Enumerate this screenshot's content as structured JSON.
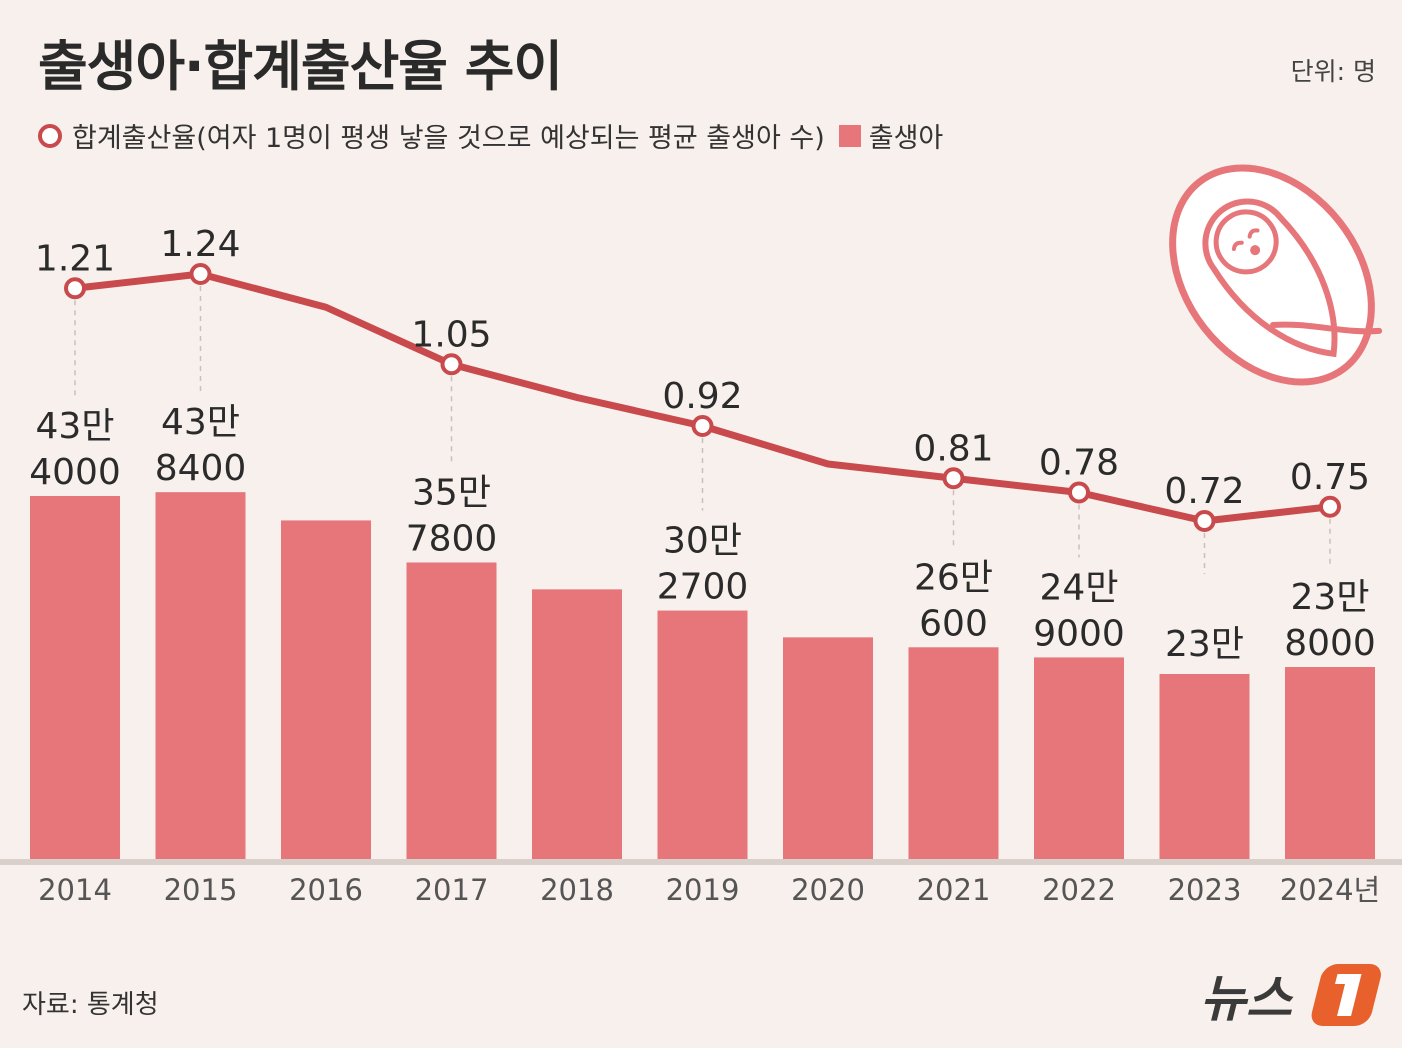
{
  "header": {
    "title": "출생아·합계출산율 추이",
    "unit": "단위: 명"
  },
  "legend": {
    "rate_label": "합계출산율(여자 1명이 평생 낳을 것으로 예상되는 평균 출생아 수)",
    "births_label": "출생아"
  },
  "source": "자료: 통계청",
  "logo_text": "뉴스",
  "colors": {
    "bar": "#e67679",
    "line": "#c84a4d",
    "background": "#f8f0ec",
    "baseline": "#d9cfcb",
    "logo_accent": "#e8602c"
  },
  "icons": [
    "swaddled-baby-icon",
    "news1-logo"
  ],
  "chart_data": {
    "type": "bar+line",
    "categories": [
      "2014",
      "2015",
      "2016",
      "2017",
      "2018",
      "2019",
      "2020",
      "2021",
      "2022",
      "2023",
      "2024년"
    ],
    "series": [
      {
        "name": "출생아",
        "type": "bar",
        "values": [
          434000,
          438400,
          406000,
          357800,
          327000,
          302700,
          272000,
          260600,
          249000,
          230000,
          238000
        ],
        "labels": [
          "43만 4000",
          "43만 8400",
          "",
          "35만 7800",
          "",
          "30만 2700",
          "",
          "26만 600",
          "24만 9000",
          "23만",
          "23만 8000"
        ]
      },
      {
        "name": "합계출산율",
        "type": "line",
        "values": [
          1.21,
          1.24,
          1.17,
          1.05,
          0.98,
          0.92,
          0.84,
          0.81,
          0.78,
          0.72,
          0.75
        ],
        "labels": [
          "1.21",
          "1.24",
          "",
          "1.05",
          "",
          "0.92",
          "",
          "0.81",
          "0.78",
          "0.72",
          "0.75"
        ]
      }
    ]
  }
}
